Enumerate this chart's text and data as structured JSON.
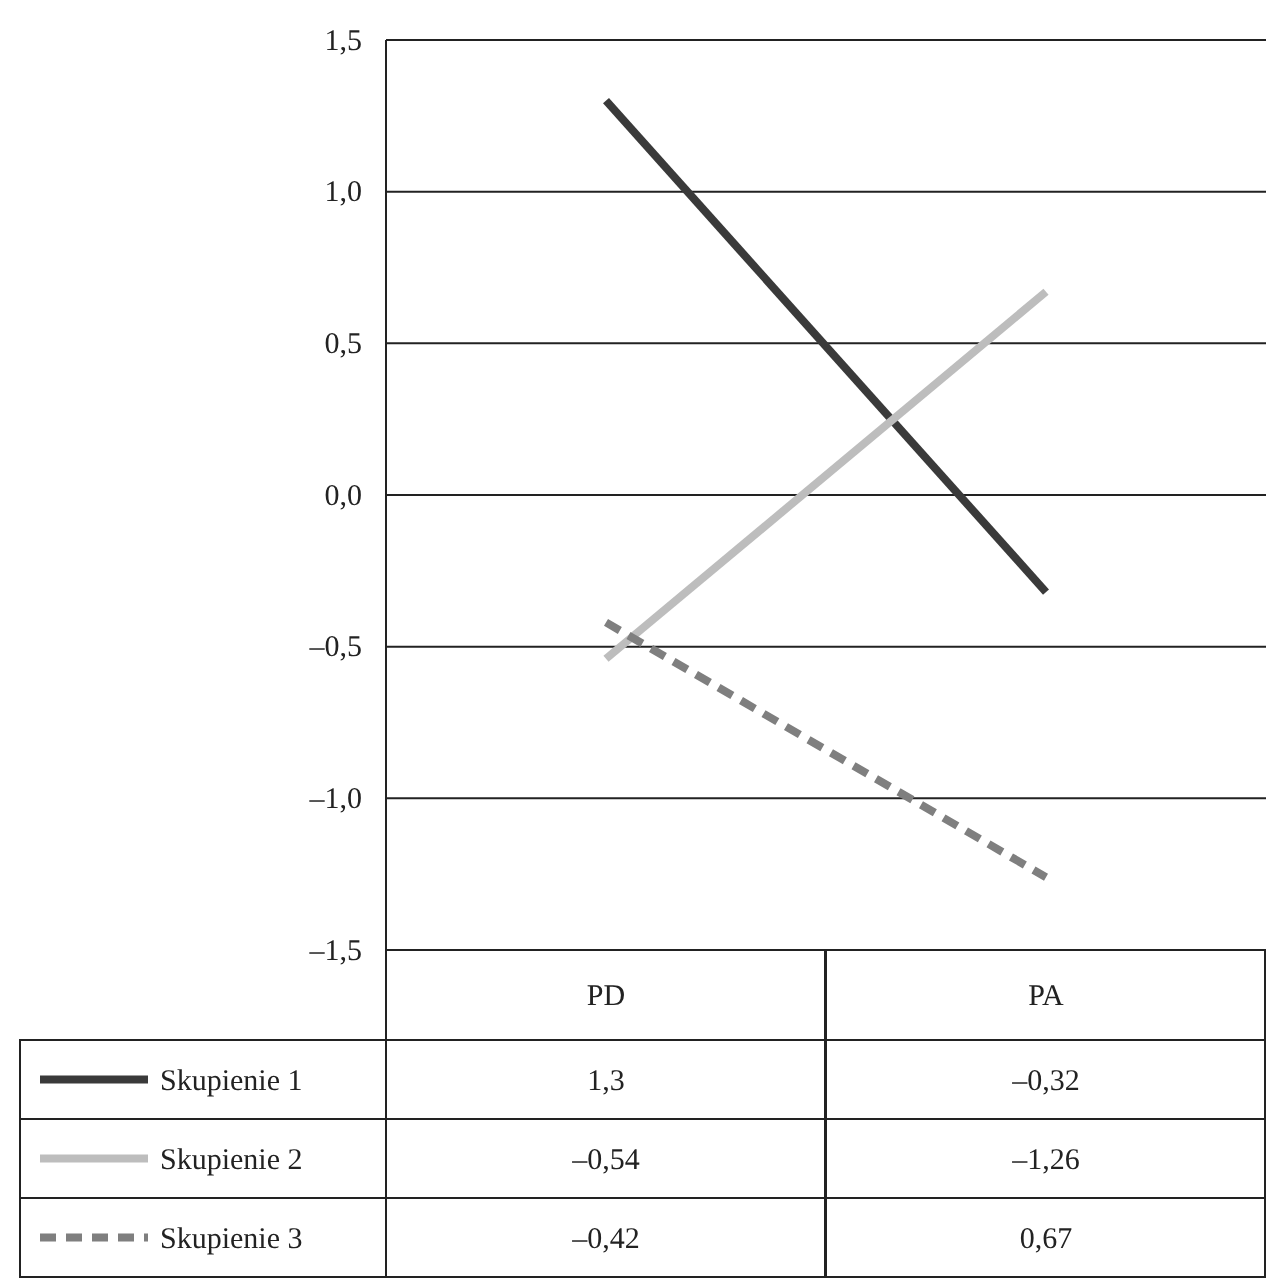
{
  "chart_data": {
    "type": "line",
    "categories": [
      "PD",
      "PA"
    ],
    "series": [
      {
        "name": "Skupienie 1",
        "color": "#3a3a3a",
        "line_style": "solid",
        "values": [
          1.3,
          -0.32
        ]
      },
      {
        "name": "Skupienie 2",
        "color": "#bdbdbd",
        "line_style": "solid",
        "values": [
          -0.54,
          0.67
        ]
      },
      {
        "name": "Skupienie 3",
        "color": "#7f7f7f",
        "line_style": "dashed",
        "values": [
          -0.42,
          -1.26
        ]
      }
    ],
    "annotations": [
      "1,3",
      "–0,32",
      "–0,54",
      "–1,26",
      "–0,42",
      "0,67"
    ],
    "ylim": [
      -1.5,
      1.5
    ],
    "yticks": [
      {
        "value": -1.5,
        "label": "–1,5"
      },
      {
        "value": -1,
        "label": "–1,0"
      },
      {
        "value": -0.5,
        "label": "–0,5"
      },
      {
        "value": 0,
        "label": "0,0"
      },
      {
        "value": 0.5,
        "label": "0,5"
      },
      {
        "value": 1,
        "label": "1,0"
      },
      {
        "value": 1.5,
        "label": "1,5"
      }
    ],
    "grid": "y",
    "legend": "bottom left",
    "marker": "none"
  }
}
